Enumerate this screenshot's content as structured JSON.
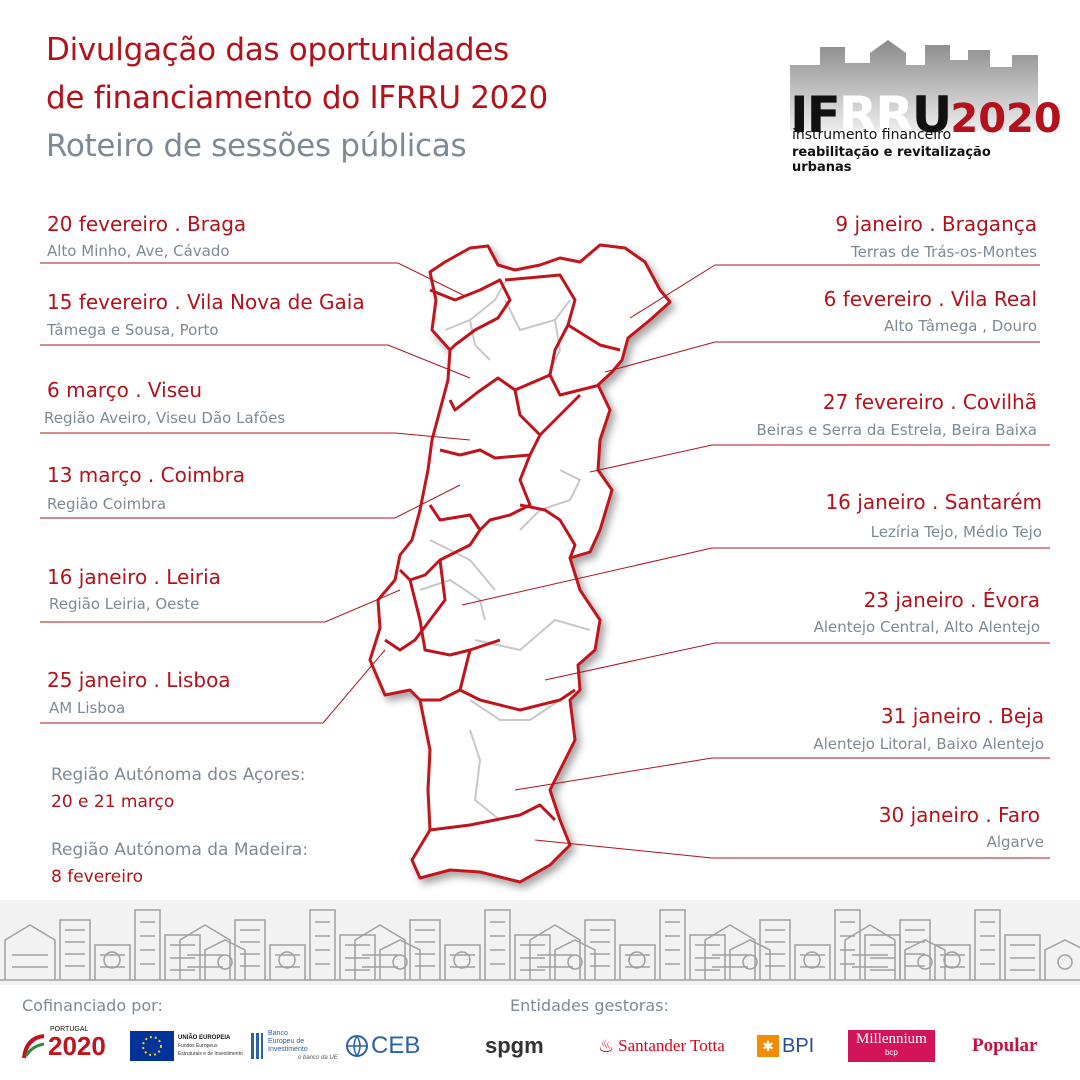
{
  "header": {
    "title_line1": "Divulgação das oportunidades",
    "title_line2": "de financiamento do IFRRU 2020",
    "subtitle": "Roteiro de sessões públicas"
  },
  "logo": {
    "letters_if": "IF",
    "letters_rr": "RR",
    "letter_u": "U",
    "year": "2020",
    "line1": "instrumento financeiro",
    "line2": "reabilitação e revitalização urbanas"
  },
  "sessions_left": [
    {
      "date": "20 fevereiro . Braga",
      "regions": "Alto Minho, Ave, Cávado"
    },
    {
      "date": "15 fevereiro . Vila Nova de Gaia",
      "regions": "Tâmega e Sousa, Porto"
    },
    {
      "date": "6 março . Viseu",
      "regions": "Região Aveiro, Viseu Dão Lafões"
    },
    {
      "date": "13 março . Coimbra",
      "regions": "Região Coimbra"
    },
    {
      "date": "16 janeiro . Leiria",
      "regions": "Região Leiria, Oeste"
    },
    {
      "date": "25 janeiro . Lisboa",
      "regions": "AM Lisboa"
    }
  ],
  "sessions_right": [
    {
      "date": "9 janeiro . Bragança",
      "regions": "Terras de Trás-os-Montes"
    },
    {
      "date": "6 fevereiro . Vila Real",
      "regions": "Alto Tâmega , Douro"
    },
    {
      "date": "27 fevereiro . Covilhã",
      "regions": "Beiras e Serra da Estrela, Beira Baixa"
    },
    {
      "date": "16 janeiro . Santarém",
      "regions": "Lezíria Tejo, Médio Tejo"
    },
    {
      "date": "23 janeiro . Évora",
      "regions": "Alentejo Central, Alto Alentejo"
    },
    {
      "date": "31 janeiro . Beja",
      "regions": "Alentejo Litoral, Baixo Alentejo"
    },
    {
      "date": "30 janeiro . Faro",
      "regions": "Algarve"
    }
  ],
  "islands": {
    "azores_label": "Região Autónoma dos Açores:",
    "azores_date": "20 e 21 março",
    "madeira_label": "Região Autónoma da Madeira:",
    "madeira_date": "8 fevereiro"
  },
  "footer": {
    "cofinanced_label": "Cofinanciado por:",
    "managers_label": "Entidades gestoras:",
    "cofinancers": {
      "portugal_small": "PORTUGAL",
      "portugal_year": "2020",
      "eu_title": "UNIÃO EUROPEIA",
      "eu_sub1": "Fundos Europeus",
      "eu_sub2": "Estruturais e de Investimento",
      "eib1": "Banco",
      "eib2": "Europeu de",
      "eib3": "Investimento",
      "eib_tag": "o banco da UE",
      "ceb": "CEB"
    },
    "managers": {
      "spgm": "spgm",
      "santander": "Santander Totta",
      "bpi": "BPI",
      "millennium": "Millennium",
      "millennium_sub": "bcp",
      "popular": "Popular"
    }
  },
  "colors": {
    "accent": "#b3121b",
    "grey_text": "#7d8a96",
    "map_outline": "#c0141c",
    "map_inner": "#c8c8c8"
  }
}
